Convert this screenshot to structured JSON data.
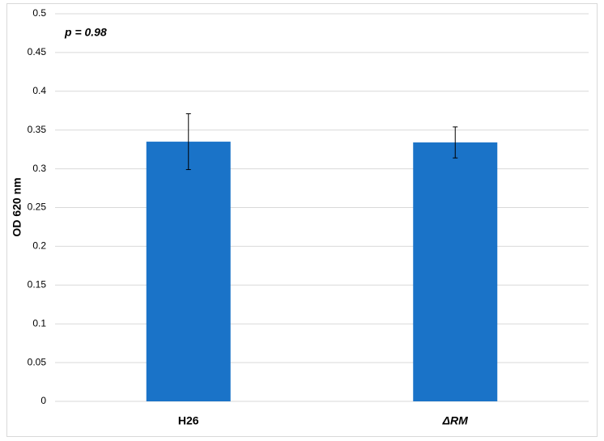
{
  "chart_data": {
    "type": "bar",
    "y_label": "OD 620 nm",
    "annotation": "p = 0.98",
    "categories": [
      "H26",
      "ΔRM"
    ],
    "series": [
      {
        "color": "#1a73c8",
        "values": [
          0.335,
          0.334
        ],
        "errors": [
          0.036,
          0.02
        ]
      }
    ],
    "ylim": [
      0,
      0.5
    ],
    "yticks": [
      0,
      0.05,
      0.1,
      0.15,
      0.2,
      0.25,
      0.3,
      0.35,
      0.4,
      0.45,
      0.5
    ],
    "grid": true
  }
}
